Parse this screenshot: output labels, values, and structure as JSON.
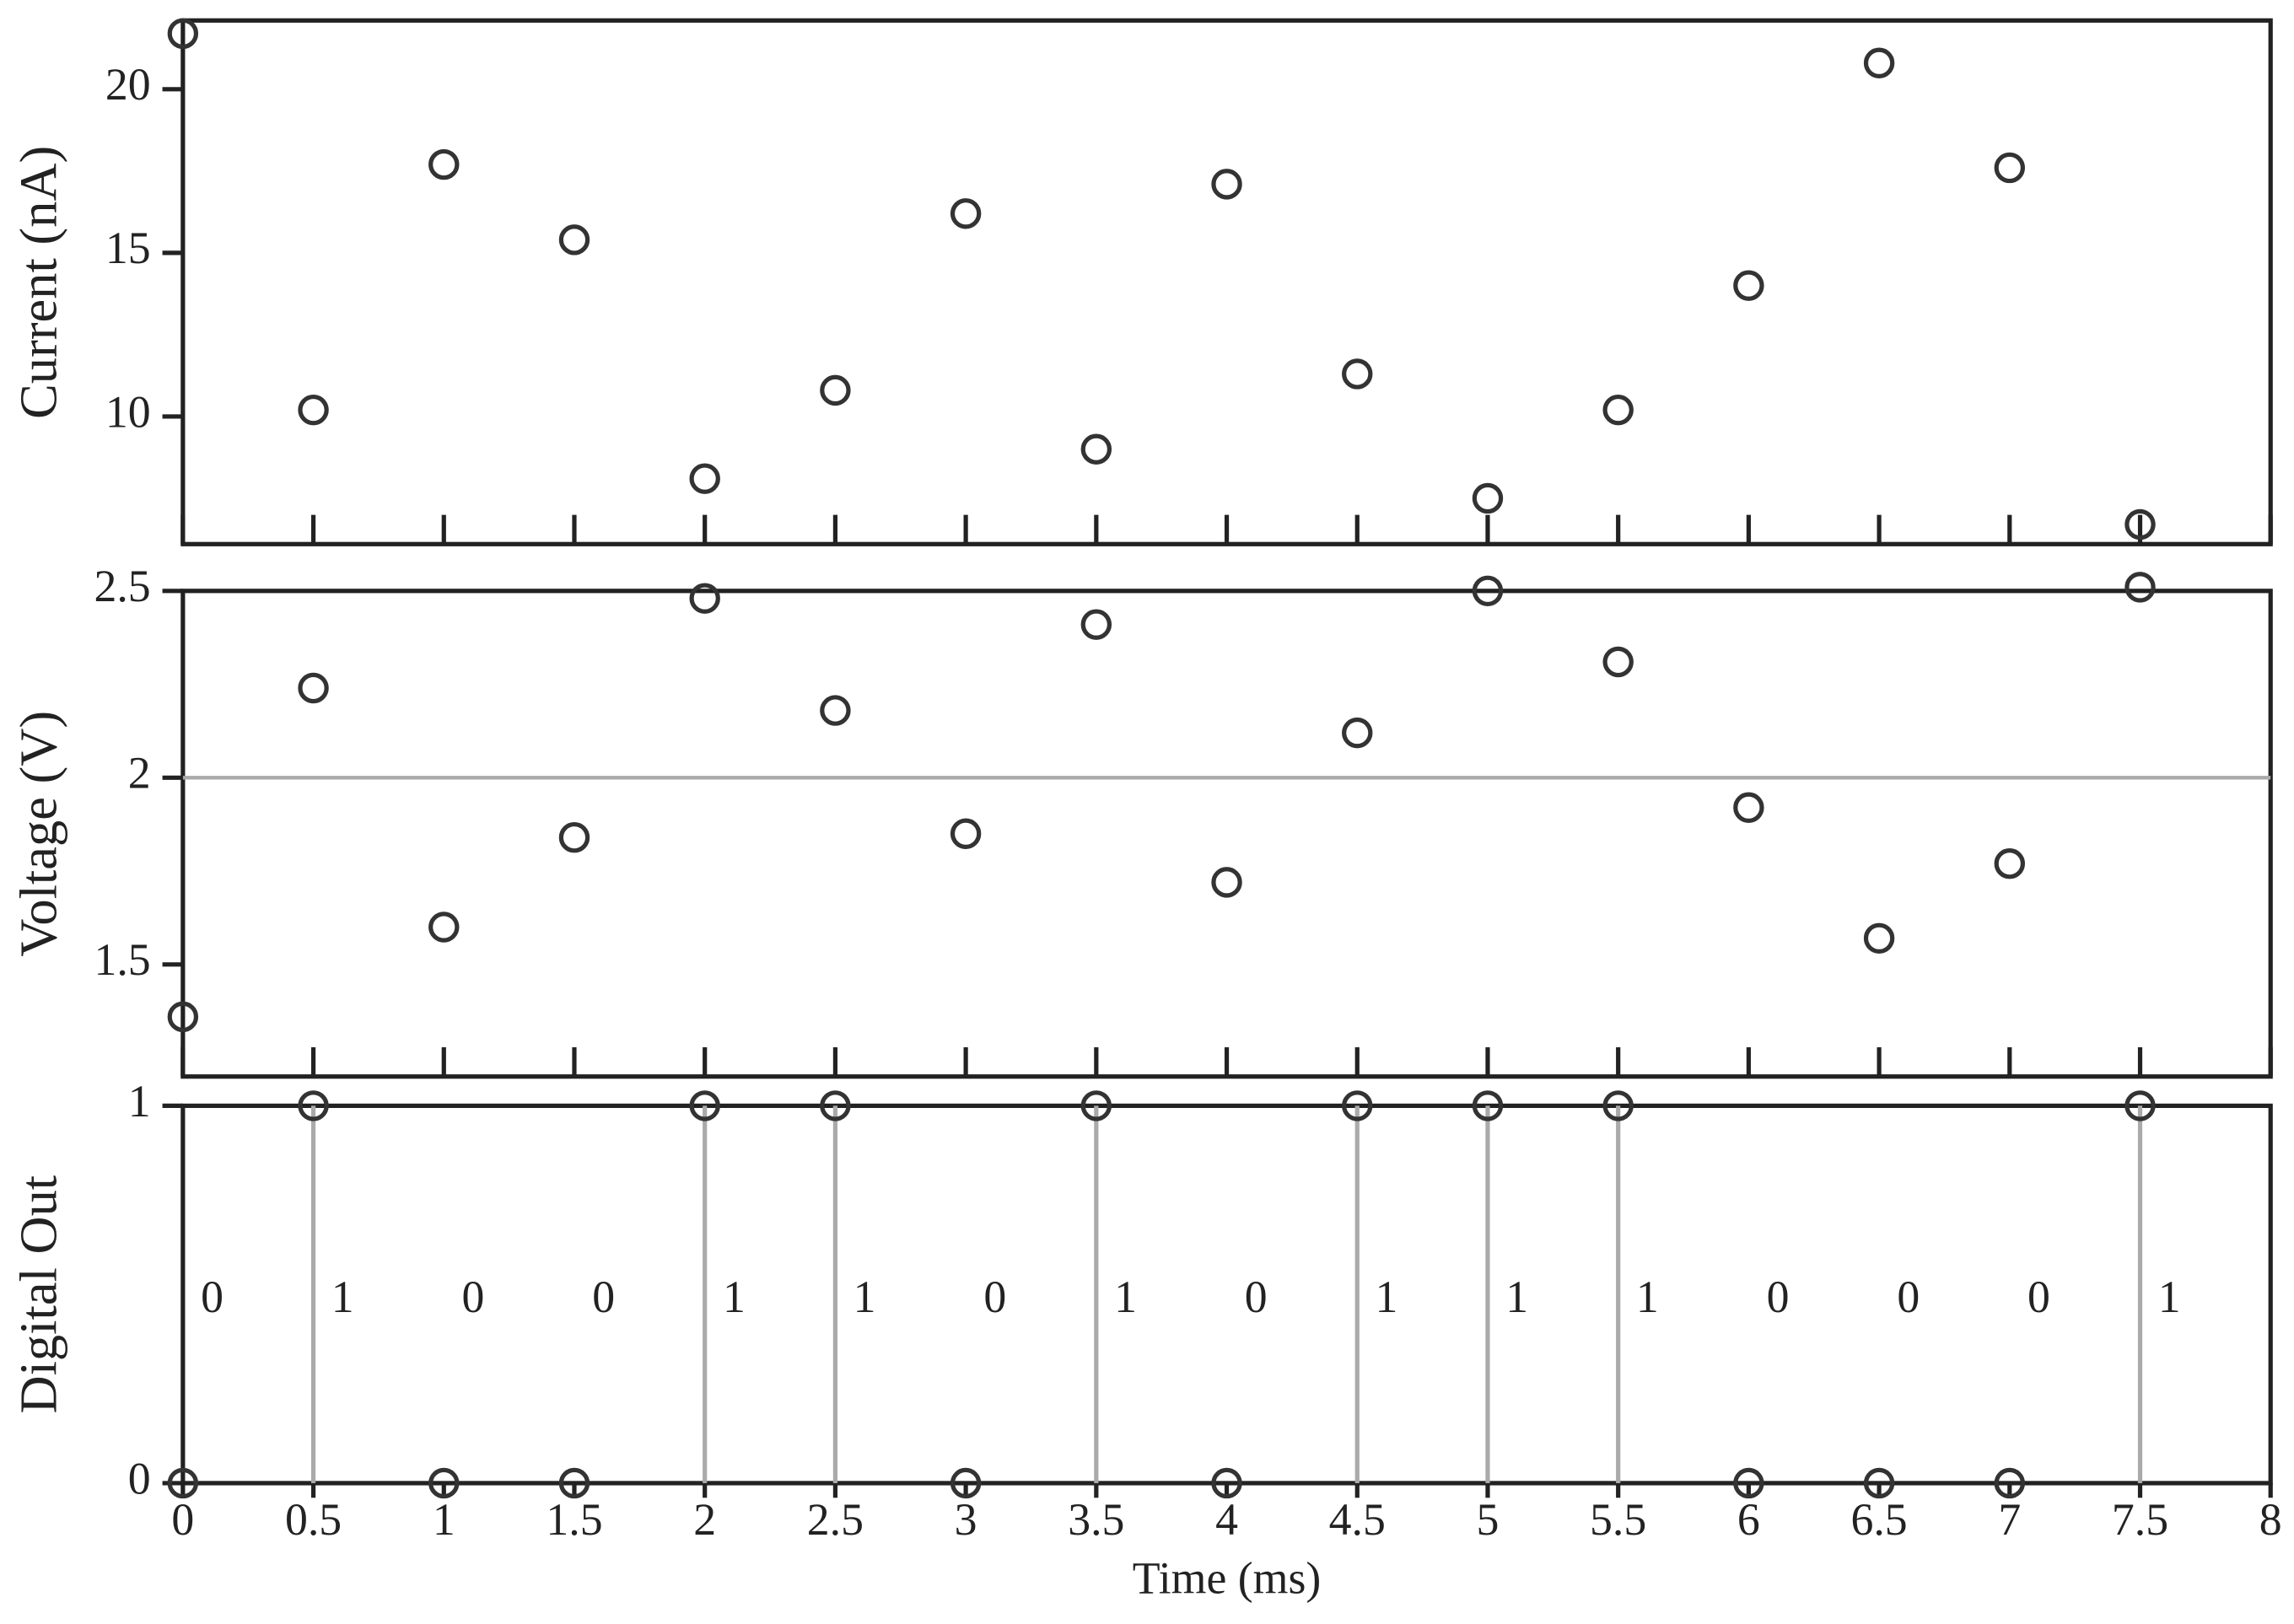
{
  "chart_data": [
    {
      "type": "scatter",
      "ylabel": "Current (nA)",
      "color": "#333333",
      "x": [
        0,
        0.5,
        1,
        1.5,
        2,
        2.5,
        3,
        3.5,
        4,
        4.5,
        5,
        5.5,
        6,
        6.5,
        7,
        7.5
      ],
      "values": [
        21.7,
        10.2,
        17.7,
        15.4,
        8.1,
        10.8,
        16.2,
        9.0,
        17.1,
        11.3,
        7.5,
        10.2,
        14.0,
        20.8,
        17.6,
        6.7
      ],
      "xlim": [
        0,
        8
      ],
      "xticks": [
        0,
        0.5,
        1,
        1.5,
        2,
        2.5,
        3,
        3.5,
        4,
        4.5,
        5,
        5.5,
        6,
        6.5,
        7,
        7.5,
        8
      ],
      "ylim": [
        6.1,
        22.1
      ],
      "yticks": [
        10,
        15,
        20
      ]
    },
    {
      "type": "scatter",
      "ylabel": "Voltage (V)",
      "color": "#333333",
      "x": [
        0,
        0.5,
        1,
        1.5,
        2,
        2.5,
        3,
        3.5,
        4,
        4.5,
        5,
        5.5,
        6,
        6.5,
        7,
        7.5
      ],
      "values": [
        1.36,
        2.24,
        1.6,
        1.84,
        2.48,
        2.18,
        1.85,
        2.41,
        1.72,
        2.12,
        2.5,
        2.31,
        1.92,
        1.57,
        1.77,
        2.51
      ],
      "xlim": [
        0,
        8
      ],
      "xticks": [
        0,
        0.5,
        1,
        1.5,
        2,
        2.5,
        3,
        3.5,
        4,
        4.5,
        5,
        5.5,
        6,
        6.5,
        7,
        7.5,
        8
      ],
      "ylim": [
        1.2,
        2.5
      ],
      "yticks": [
        1.5,
        2,
        2.5
      ],
      "hline": 2,
      "hline_color": "#aaaaaa"
    },
    {
      "type": "scatter",
      "ylabel": "Digital Out",
      "xlabel": "Time (ms)",
      "color": "#333333",
      "x": [
        0,
        0.5,
        1,
        1.5,
        2,
        2.5,
        3,
        3.5,
        4,
        4.5,
        5,
        5.5,
        6,
        6.5,
        7,
        7.5
      ],
      "values": [
        0,
        1,
        0,
        0,
        1,
        1,
        0,
        1,
        0,
        1,
        1,
        1,
        0,
        0,
        0,
        1
      ],
      "xlim": [
        0,
        8
      ],
      "xticks": [
        0,
        0.5,
        1,
        1.5,
        2,
        2.5,
        3,
        3.5,
        4,
        4.5,
        5,
        5.5,
        6,
        6.5,
        7,
        7.5,
        8
      ],
      "ylim": [
        0,
        1
      ],
      "yticks": [
        0,
        1
      ],
      "stems": true,
      "stem_color": "#aaaaaa",
      "data_labels": true,
      "show_xtick_labels": true
    }
  ]
}
